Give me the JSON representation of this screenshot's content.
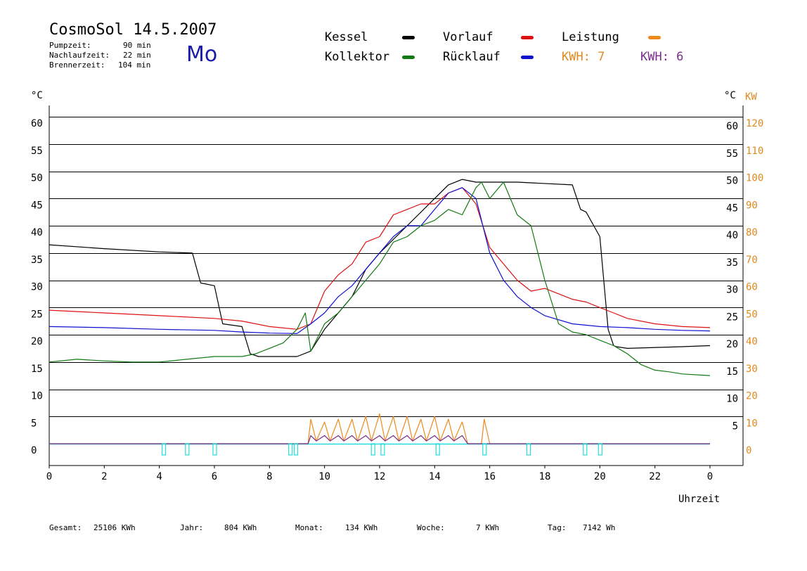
{
  "header": {
    "title": "CosmoSol 14.5.2007",
    "day": "Mo",
    "info": [
      {
        "label": "Pumpzeit:",
        "value": "90 min"
      },
      {
        "label": "Nachlaufzeit:",
        "value": "22 min"
      },
      {
        "label": "Brennerzeit:",
        "value": "104 min"
      }
    ]
  },
  "legend": {
    "kessel": "Kessel",
    "vorlauf": "Vorlauf",
    "leistung": "Leistung",
    "kollektor": "Kollektor",
    "ruecklauf": "Rücklauf",
    "kwh1": "KWH: 7",
    "kwh2": "KWH: 6"
  },
  "colors": {
    "kessel": "#000000",
    "vorlauf": "#dd1111",
    "leistung": "#ee8a1c",
    "kollektor": "#127a12",
    "ruecklauf": "#1010d0",
    "pump": "#22dddd",
    "kwh2": "#7b2d8e"
  },
  "axes": {
    "left_unit": "°C",
    "right_unit_c": "°C",
    "right_unit_kw": "KW",
    "xlabel": "Uhrzeit",
    "left_ticks": [
      "60",
      "55",
      "50",
      "45",
      "40",
      "35",
      "30",
      "25",
      "20",
      "15",
      "10",
      "5",
      "0"
    ],
    "right_c_ticks": [
      "60",
      "55",
      "50",
      "45",
      "40",
      "35",
      "30",
      "25",
      "20",
      "15",
      "10",
      "5"
    ],
    "right_kw_ticks": [
      "120",
      "110",
      "100",
      "90",
      "80",
      "70",
      "60",
      "50",
      "40",
      "30",
      "20",
      "10",
      "0"
    ],
    "x_ticks": [
      "0",
      "2",
      "4",
      "6",
      "8",
      "10",
      "12",
      "14",
      "16",
      "18",
      "20",
      "22",
      "0"
    ]
  },
  "footer": [
    {
      "label": "Gesamt:",
      "value": "25106 KWh"
    },
    {
      "label": "Jahr:",
      "value": "804 KWh"
    },
    {
      "label": "Monat:",
      "value": "134 KWh"
    },
    {
      "label": "Woche:",
      "value": "7 KWh"
    },
    {
      "label": "Tag:",
      "value": "7142 Wh"
    }
  ],
  "chart_data": {
    "type": "line",
    "xlabel": "Uhrzeit",
    "ylabel": "°C",
    "xlim": [
      0,
      24
    ],
    "ylim": [
      0,
      60
    ],
    "y2label": "KW",
    "y2lim": [
      0,
      120
    ],
    "grid": true,
    "series": [
      {
        "name": "Kessel",
        "x": [
          0,
          2,
          4,
          5.2,
          5.5,
          6,
          6.3,
          7,
          7.3,
          7.6,
          9,
          9.5,
          10,
          11,
          11.5,
          12,
          13,
          14,
          14.5,
          15,
          15.5,
          17,
          19,
          19.3,
          19.5,
          20,
          20.3,
          20.5,
          20.6,
          21,
          23,
          24
        ],
        "y": [
          36.5,
          35.8,
          35.2,
          35,
          29.5,
          29,
          22,
          21.5,
          16.5,
          16,
          16,
          17,
          21,
          27,
          32,
          35,
          40,
          45,
          47.5,
          48.5,
          48,
          48,
          47.5,
          43,
          42.5,
          38,
          21,
          18,
          17.8,
          17.5,
          17.8,
          18
        ]
      },
      {
        "name": "Vorlauf",
        "x": [
          0,
          2,
          4,
          6,
          7,
          8,
          9,
          9.5,
          10,
          10.5,
          11,
          11.5,
          12,
          12.5,
          13,
          13.5,
          14,
          14.5,
          15,
          15.5,
          16,
          16.5,
          17,
          17.5,
          18,
          19,
          19.5,
          20,
          20.5,
          21,
          22,
          23,
          24
        ],
        "y": [
          24.5,
          24,
          23.5,
          23,
          22.5,
          21.5,
          21,
          22,
          28,
          31,
          33,
          37,
          38,
          42,
          43,
          44,
          44,
          46,
          47,
          44,
          36,
          33,
          30,
          28,
          28.5,
          26.5,
          26,
          25,
          24,
          23,
          22,
          21.5,
          21.3
        ]
      },
      {
        "name": "Rücklauf",
        "x": [
          0,
          2,
          4,
          6,
          7,
          8,
          9,
          9.5,
          10,
          10.5,
          11,
          11.5,
          12,
          12.5,
          13,
          13.5,
          14,
          14.5,
          15,
          15.5,
          16,
          16.5,
          17,
          17.5,
          18,
          19,
          20,
          21,
          22,
          23,
          24
        ],
        "y": [
          21.5,
          21.3,
          21,
          20.8,
          20.5,
          20.3,
          20.2,
          22,
          24,
          27,
          29,
          32,
          35,
          38,
          40,
          40,
          43,
          46,
          47,
          45,
          35,
          30,
          27,
          25,
          23.5,
          22,
          21.5,
          21.3,
          21,
          20.8,
          20.7
        ]
      },
      {
        "name": "Kollektor",
        "x": [
          0,
          1,
          2,
          3,
          4,
          5,
          6,
          7,
          7.5,
          8,
          8.5,
          9,
          9.3,
          9.5,
          10,
          10.5,
          11,
          11.5,
          12,
          12.5,
          13,
          13.5,
          14,
          14.5,
          15,
          15.5,
          15.7,
          16,
          16.5,
          17,
          17.5,
          18,
          18.5,
          19,
          19.5,
          20,
          20.5,
          21,
          21.5,
          22,
          22.5,
          23,
          24
        ],
        "y": [
          15,
          15.5,
          15.2,
          15,
          15,
          15.5,
          16,
          16,
          16.5,
          17.5,
          18.5,
          21,
          24,
          17,
          22,
          24,
          27,
          30,
          33,
          37,
          38,
          40,
          41,
          43,
          42,
          47,
          48,
          45,
          48,
          42,
          40,
          30,
          22,
          20.5,
          20,
          19,
          18,
          16.5,
          14.5,
          13.5,
          13.2,
          12.8,
          12.5
        ]
      },
      {
        "name": "Leistung",
        "x": [
          0,
          9.4,
          9.5,
          9.7,
          10,
          10.2,
          10.5,
          10.7,
          11,
          11.2,
          11.5,
          11.7,
          12,
          12.2,
          12.5,
          12.7,
          13,
          13.2,
          13.5,
          13.7,
          14,
          14.2,
          14.5,
          14.7,
          15,
          15.2,
          15.7,
          15.8,
          16,
          24
        ],
        "y": [
          0,
          0,
          9,
          1,
          8,
          1,
          9,
          1,
          9,
          1,
          10,
          1,
          11,
          1,
          10,
          1,
          10,
          1,
          9,
          1,
          10,
          1,
          9,
          1,
          8,
          0,
          0,
          9,
          0,
          0
        ]
      },
      {
        "name": "KWH: 6",
        "x": [
          0,
          9.4,
          9.5,
          9.7,
          10,
          10.2,
          10.5,
          10.7,
          11,
          11.2,
          11.5,
          11.7,
          12,
          12.2,
          12.5,
          12.7,
          13,
          13.2,
          13.5,
          13.7,
          14,
          14.2,
          14.5,
          14.7,
          15,
          15.2,
          24
        ],
        "y": [
          0,
          0,
          3,
          1,
          3,
          1,
          3,
          1,
          3,
          1,
          3,
          1,
          3,
          1,
          3,
          1,
          3,
          1,
          3,
          1,
          3,
          1,
          3,
          1,
          3,
          0,
          0
        ]
      }
    ]
  }
}
